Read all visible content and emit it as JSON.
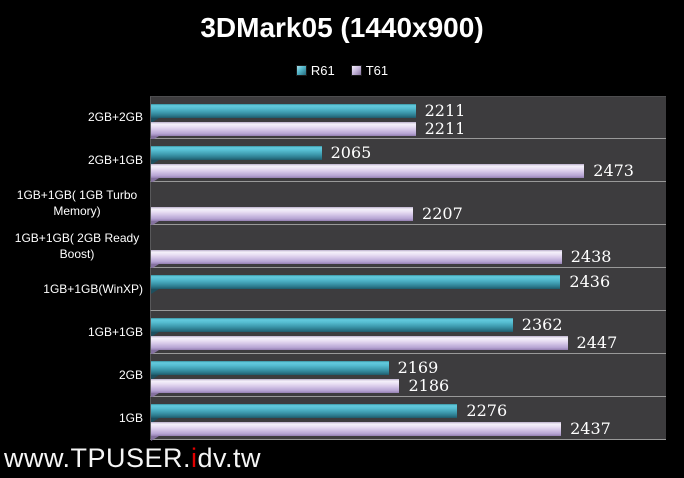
{
  "background": "#000000",
  "chart_data": {
    "type": "bar",
    "orientation": "horizontal",
    "title": "3DMark05 (1440x900)",
    "categories": [
      "2GB+2GB",
      "2GB+1GB",
      "1GB+1GB( 1GB Turbo Memory)",
      "1GB+1GB( 2GB Ready Boost)",
      "1GB+1GB(WinXP)",
      "1GB+1GB",
      "2GB",
      "1GB"
    ],
    "series": [
      {
        "name": "R61",
        "color": "#45aec4",
        "values": [
          2211,
          2065,
          null,
          null,
          2436,
          2362,
          2169,
          2276
        ]
      },
      {
        "name": "T61",
        "color": "#cfc0e4",
        "values": [
          2211,
          2473,
          2207,
          2438,
          null,
          2447,
          2186,
          2437
        ]
      }
    ],
    "value_axis": {
      "min": 1800,
      "max": 2600,
      "gridlines": false,
      "tick_labels_visible": false
    },
    "category_axis_side": "left",
    "legend_position": "top-center",
    "data_labels": "outside-end",
    "plot_background": "#3d3c3e",
    "row_separator_color": "#999999",
    "text_color": "#ffffff"
  },
  "watermark": {
    "prefix": "www.TPUSER.",
    "highlight": "i",
    "suffix": "dv.tw",
    "text_color": "#f5f5f5",
    "highlight_color": "#e10000"
  }
}
